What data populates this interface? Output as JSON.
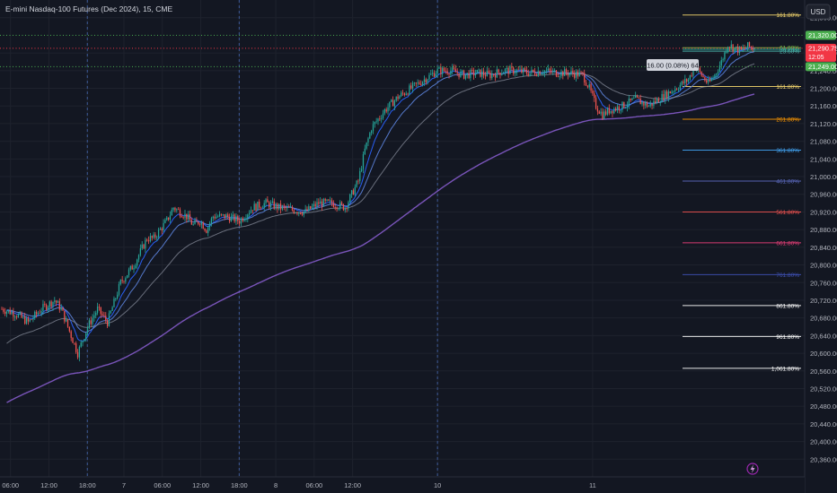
{
  "header": {
    "title": "E-mini Nasdaq-100 Futures (Dec 2024), 15, CME",
    "currency": "USD"
  },
  "colors": {
    "background": "#131722",
    "up": "#26a69a",
    "down": "#ef5350",
    "grid": "#1e222d",
    "axis_text": "#b2b5be",
    "ma_fast": "#2962ff",
    "ma_mid": "#5a7fd6",
    "ma_slow": "#8f94a3",
    "ma_long": "#7e57c2",
    "current_price": "#f23645",
    "level_green": "#4caf50"
  },
  "axis": {
    "y_ticks": [
      "21,360.00",
      "21,280.00",
      "21,240.00",
      "21,200.00",
      "21,160.00",
      "21,120.00",
      "21,080.00",
      "21,040.00",
      "21,000.00",
      "20,960.00",
      "20,920.00",
      "20,880.00",
      "20,840.00",
      "20,800.00",
      "20,760.00",
      "20,720.00",
      "20,680.00",
      "20,640.00",
      "20,600.00",
      "20,560.00",
      "20,520.00",
      "20,480.00",
      "20,440.00",
      "20,400.00",
      "20,360.00"
    ],
    "x_ticks": [
      {
        "label": "06:00",
        "day": 0,
        "hour": 6
      },
      {
        "label": "12:00",
        "day": 0,
        "hour": 12
      },
      {
        "label": "18:00",
        "day": 0,
        "hour": 18
      },
      {
        "label": "7",
        "day": 1,
        "hour": 0
      },
      {
        "label": "06:00",
        "day": 1,
        "hour": 6
      },
      {
        "label": "12:00",
        "day": 1,
        "hour": 12
      },
      {
        "label": "18:00",
        "day": 1,
        "hour": 18
      },
      {
        "label": "8",
        "day": 2,
        "hour": 0
      },
      {
        "label": "06:00",
        "day": 2,
        "hour": 6
      },
      {
        "label": "12:00",
        "day": 2,
        "hour": 12
      },
      {
        "label": "10",
        "day": 3,
        "hour": 0
      },
      {
        "label": "11",
        "day": 4,
        "hour": 0
      }
    ],
    "session_separators": [
      {
        "day": 0,
        "hour": 18
      },
      {
        "day": 1,
        "hour": 18
      },
      {
        "day": 3,
        "hour": 0
      }
    ]
  },
  "price_badges": [
    {
      "label": "21,320.00",
      "price": 21320,
      "color": "#4caf50",
      "line": "dotted"
    },
    {
      "label": "21,290.75",
      "sub": "12:05",
      "price": 21290.75,
      "color": "#f23645",
      "line": "dotted"
    },
    {
      "label": "21,249.00",
      "price": 21249,
      "color": "#4caf50",
      "line": "dotted"
    }
  ],
  "measure_label": "16.00 (0.08%) 64",
  "fib_levels": [
    {
      "label": "161.80%",
      "price": 21366,
      "color": "#f5d76e"
    },
    {
      "label": "61.80%",
      "price": 21292,
      "color": "#8bc34a"
    },
    {
      "label": "38.20%",
      "price": 21288,
      "color": "#26a69a"
    },
    {
      "label": "23.60%",
      "price": 21284,
      "color": "#4db6ac"
    },
    {
      "label": "161.80%",
      "price": 21204,
      "color": "#f5d76e"
    },
    {
      "label": "261.80%",
      "price": 21130,
      "color": "#ff9800"
    },
    {
      "label": "361.80%",
      "price": 21060,
      "color": "#42a5f5"
    },
    {
      "label": "461.80%",
      "price": 20990,
      "color": "#5c6bc0"
    },
    {
      "label": "561.80%",
      "price": 20920,
      "color": "#ef5350"
    },
    {
      "label": "661.80%",
      "price": 20850,
      "color": "#ec407a"
    },
    {
      "label": "761.80%",
      "price": 20778,
      "color": "#3f51b5"
    },
    {
      "label": "861.80%",
      "price": 20708,
      "color": "#ffffff"
    },
    {
      "label": "961.80%",
      "price": 20638,
      "color": "#ffffff"
    },
    {
      "label": "1,061.80%",
      "price": 20566,
      "color": "#ffffff"
    }
  ],
  "chart_data": {
    "type": "candlestick",
    "title": "E-mini Nasdaq-100 Futures (Dec 2024), 15, CME",
    "interval": "15",
    "ylim": [
      20320,
      21400
    ],
    "y_axis_side": "right",
    "grid": true,
    "x_domain_hours": [
      0,
      114
    ],
    "x_labels": [
      "06:00",
      "12:00",
      "18:00",
      "7",
      "06:00",
      "12:00",
      "18:00",
      "8",
      "06:00",
      "12:00",
      "10",
      "11"
    ],
    "close_path": [
      [
        0,
        20700
      ],
      [
        2,
        20690
      ],
      [
        4,
        20670
      ],
      [
        6,
        20700
      ],
      [
        8,
        20720
      ],
      [
        9,
        20700
      ],
      [
        10.5,
        20640
      ],
      [
        11.5,
        20600
      ],
      [
        13,
        20660
      ],
      [
        14.5,
        20700
      ],
      [
        16,
        20670
      ],
      [
        18,
        20760
      ],
      [
        20,
        20800
      ],
      [
        22,
        20860
      ],
      [
        23,
        20860
      ],
      [
        24,
        20880
      ],
      [
        25,
        20900
      ],
      [
        26,
        20930
      ],
      [
        27,
        20920
      ],
      [
        28,
        20910
      ],
      [
        29,
        20890
      ],
      [
        30,
        20900
      ],
      [
        31,
        20880
      ],
      [
        32,
        20910
      ],
      [
        34,
        20910
      ],
      [
        36,
        20900
      ],
      [
        38,
        20930
      ],
      [
        40,
        20940
      ],
      [
        42,
        20930
      ],
      [
        44,
        20925
      ],
      [
        46,
        20920
      ],
      [
        48,
        20940
      ],
      [
        50,
        20940
      ],
      [
        52,
        20930
      ],
      [
        53,
        20960
      ],
      [
        54,
        20990
      ],
      [
        55,
        21060
      ],
      [
        56,
        21110
      ],
      [
        58,
        21150
      ],
      [
        60,
        21180
      ],
      [
        62,
        21200
      ],
      [
        64,
        21220
      ],
      [
        66,
        21240
      ],
      [
        68,
        21240
      ],
      [
        70,
        21230
      ],
      [
        72,
        21235
      ],
      [
        74,
        21230
      ],
      [
        76,
        21240
      ],
      [
        78,
        21240
      ],
      [
        80,
        21235
      ],
      [
        82,
        21240
      ],
      [
        84,
        21235
      ],
      [
        86,
        21235
      ],
      [
        88,
        21230
      ],
      [
        89,
        21200
      ],
      [
        90,
        21160
      ],
      [
        91,
        21140
      ],
      [
        92,
        21150
      ],
      [
        94,
        21160
      ],
      [
        96,
        21175
      ],
      [
        98,
        21160
      ],
      [
        100,
        21180
      ],
      [
        102,
        21200
      ],
      [
        104,
        21220
      ],
      [
        105,
        21250
      ],
      [
        106,
        21230
      ],
      [
        107,
        21210
      ],
      [
        108,
        21230
      ],
      [
        109,
        21260
      ],
      [
        110,
        21300
      ],
      [
        111,
        21290
      ],
      [
        112,
        21285
      ],
      [
        113,
        21295
      ],
      [
        114,
        21290.75
      ]
    ],
    "wick_noise": 12,
    "moving_averages": [
      {
        "period": 9,
        "color": "#2962ff"
      },
      {
        "period": 20,
        "color": "#5a7fd6"
      },
      {
        "period": 50,
        "color": "#8f94a3"
      },
      {
        "period": 200,
        "color": "#7e57c2"
      }
    ],
    "last_price": 21290.75,
    "countdown": "12:05",
    "currency": "USD"
  }
}
